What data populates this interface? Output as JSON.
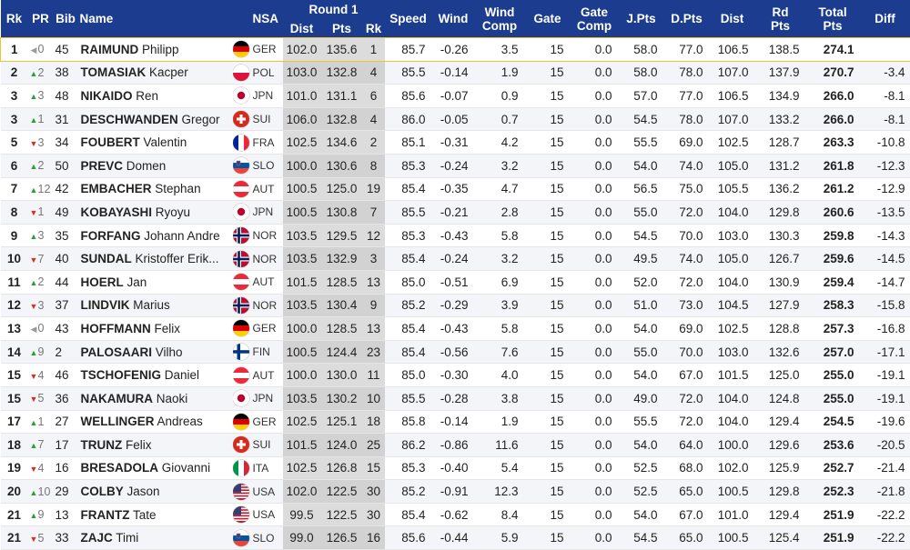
{
  "headers": {
    "rk": "Rk",
    "pr": "PR",
    "bib": "Bib",
    "name": "Name",
    "nsa": "NSA",
    "round1": "Round 1",
    "dist": "Dist",
    "pts": "Pts",
    "r1rk": "Rk",
    "speed": "Speed",
    "wind": "Wind",
    "wind_comp_1": "Wind",
    "wind_comp_2": "Comp",
    "gate": "Gate",
    "gate_comp_1": "Gate",
    "gate_comp_2": "Comp",
    "jpts": "J.Pts",
    "dpts": "D.Pts",
    "dist2": "Dist",
    "rdpts_1": "Rd",
    "rdpts_2": "Pts",
    "total_1": "Total",
    "total_2": "Pts",
    "diff": "Diff"
  },
  "rows": [
    {
      "rk": "1",
      "pr_dir": "same",
      "pr": "0",
      "bib": "45",
      "last": "RAIMUND",
      "first": "Philipp",
      "nsa": "GER",
      "flag": "ger-flag",
      "dist": "102.0",
      "pts": "135.6",
      "r1rk": "1",
      "speed": "85.7",
      "wind": "-0.26",
      "windcomp": "3.5",
      "gate": "15",
      "gatecomp": "0.0",
      "jpts": "58.0",
      "dpts": "77.0",
      "dist2": "106.5",
      "rdpts": "138.5",
      "total": "274.1",
      "diff": ""
    },
    {
      "rk": "2",
      "pr_dir": "up",
      "pr": "2",
      "bib": "38",
      "last": "TOMASIAK",
      "first": "Kacper",
      "nsa": "POL",
      "flag": "pol-flag",
      "dist": "103.0",
      "pts": "132.8",
      "r1rk": "4",
      "speed": "85.5",
      "wind": "-0.14",
      "windcomp": "1.9",
      "gate": "15",
      "gatecomp": "0.0",
      "jpts": "58.0",
      "dpts": "78.0",
      "dist2": "107.0",
      "rdpts": "137.9",
      "total": "270.7",
      "diff": "-3.4"
    },
    {
      "rk": "3",
      "pr_dir": "up",
      "pr": "3",
      "bib": "48",
      "last": "NIKAIDO",
      "first": "Ren",
      "nsa": "JPN",
      "flag": "jpn-flag",
      "dist": "101.0",
      "pts": "131.1",
      "r1rk": "6",
      "speed": "85.6",
      "wind": "-0.07",
      "windcomp": "0.9",
      "gate": "15",
      "gatecomp": "0.0",
      "jpts": "57.0",
      "dpts": "77.0",
      "dist2": "106.5",
      "rdpts": "134.9",
      "total": "266.0",
      "diff": "-8.1"
    },
    {
      "rk": "3",
      "pr_dir": "up",
      "pr": "1",
      "bib": "31",
      "last": "DESCHWANDEN",
      "first": "Gregor",
      "nsa": "SUI",
      "flag": "sui-flag",
      "dist": "106.0",
      "pts": "132.8",
      "r1rk": "4",
      "speed": "86.0",
      "wind": "-0.05",
      "windcomp": "0.7",
      "gate": "15",
      "gatecomp": "0.0",
      "jpts": "54.5",
      "dpts": "78.0",
      "dist2": "107.0",
      "rdpts": "133.2",
      "total": "266.0",
      "diff": "-8.1"
    },
    {
      "rk": "5",
      "pr_dir": "down",
      "pr": "3",
      "bib": "34",
      "last": "FOUBERT",
      "first": "Valentin",
      "nsa": "FRA",
      "flag": "fra-flag",
      "dist": "102.5",
      "pts": "134.6",
      "r1rk": "2",
      "speed": "85.1",
      "wind": "-0.31",
      "windcomp": "4.2",
      "gate": "15",
      "gatecomp": "0.0",
      "jpts": "55.5",
      "dpts": "69.0",
      "dist2": "102.5",
      "rdpts": "128.7",
      "total": "263.3",
      "diff": "-10.8"
    },
    {
      "rk": "6",
      "pr_dir": "up",
      "pr": "2",
      "bib": "50",
      "last": "PREVC",
      "first": "Domen",
      "nsa": "SLO",
      "flag": "slo-flag",
      "dist": "100.0",
      "pts": "130.6",
      "r1rk": "8",
      "speed": "85.3",
      "wind": "-0.24",
      "windcomp": "3.2",
      "gate": "15",
      "gatecomp": "0.0",
      "jpts": "54.0",
      "dpts": "74.0",
      "dist2": "105.0",
      "rdpts": "131.2",
      "total": "261.8",
      "diff": "-12.3"
    },
    {
      "rk": "7",
      "pr_dir": "up",
      "pr": "12",
      "bib": "42",
      "last": "EMBACHER",
      "first": "Stephan",
      "nsa": "AUT",
      "flag": "aut-flag",
      "dist": "100.5",
      "pts": "125.0",
      "r1rk": "19",
      "speed": "85.4",
      "wind": "-0.35",
      "windcomp": "4.7",
      "gate": "15",
      "gatecomp": "0.0",
      "jpts": "56.5",
      "dpts": "75.0",
      "dist2": "105.5",
      "rdpts": "136.2",
      "total": "261.2",
      "diff": "-12.9"
    },
    {
      "rk": "8",
      "pr_dir": "down",
      "pr": "1",
      "bib": "49",
      "last": "KOBAYASHI",
      "first": "Ryoyu",
      "nsa": "JPN",
      "flag": "jpn-flag",
      "dist": "100.5",
      "pts": "130.8",
      "r1rk": "7",
      "speed": "85.5",
      "wind": "-0.21",
      "windcomp": "2.8",
      "gate": "15",
      "gatecomp": "0.0",
      "jpts": "55.0",
      "dpts": "72.0",
      "dist2": "104.0",
      "rdpts": "129.8",
      "total": "260.6",
      "diff": "-13.5"
    },
    {
      "rk": "9",
      "pr_dir": "up",
      "pr": "3",
      "bib": "35",
      "last": "FORFANG",
      "first": "Johann Andre",
      "nsa": "NOR",
      "flag": "nor-flag",
      "dist": "103.5",
      "pts": "129.5",
      "r1rk": "12",
      "speed": "85.3",
      "wind": "-0.43",
      "windcomp": "5.8",
      "gate": "15",
      "gatecomp": "0.0",
      "jpts": "54.5",
      "dpts": "70.0",
      "dist2": "103.0",
      "rdpts": "130.3",
      "total": "259.8",
      "diff": "-14.3"
    },
    {
      "rk": "10",
      "pr_dir": "down",
      "pr": "7",
      "bib": "40",
      "last": "SUNDAL",
      "first": "Kristoffer Erik...",
      "nsa": "NOR",
      "flag": "nor-flag",
      "dist": "103.5",
      "pts": "132.9",
      "r1rk": "3",
      "speed": "85.4",
      "wind": "-0.24",
      "windcomp": "3.2",
      "gate": "15",
      "gatecomp": "0.0",
      "jpts": "49.5",
      "dpts": "74.0",
      "dist2": "105.0",
      "rdpts": "126.7",
      "total": "259.6",
      "diff": "-14.5"
    },
    {
      "rk": "11",
      "pr_dir": "up",
      "pr": "2",
      "bib": "44",
      "last": "HOERL",
      "first": "Jan",
      "nsa": "AUT",
      "flag": "aut-flag",
      "dist": "101.5",
      "pts": "128.5",
      "r1rk": "13",
      "speed": "85.0",
      "wind": "-0.51",
      "windcomp": "6.9",
      "gate": "15",
      "gatecomp": "0.0",
      "jpts": "52.0",
      "dpts": "72.0",
      "dist2": "104.0",
      "rdpts": "130.9",
      "total": "259.4",
      "diff": "-14.7"
    },
    {
      "rk": "12",
      "pr_dir": "down",
      "pr": "3",
      "bib": "37",
      "last": "LINDVIK",
      "first": "Marius",
      "nsa": "NOR",
      "flag": "nor-flag",
      "dist": "103.5",
      "pts": "130.4",
      "r1rk": "9",
      "speed": "85.2",
      "wind": "-0.29",
      "windcomp": "3.9",
      "gate": "15",
      "gatecomp": "0.0",
      "jpts": "51.0",
      "dpts": "73.0",
      "dist2": "104.5",
      "rdpts": "127.9",
      "total": "258.3",
      "diff": "-15.8"
    },
    {
      "rk": "13",
      "pr_dir": "same",
      "pr": "0",
      "bib": "43",
      "last": "HOFFMANN",
      "first": "Felix",
      "nsa": "GER",
      "flag": "ger-flag",
      "dist": "100.0",
      "pts": "128.5",
      "r1rk": "13",
      "speed": "85.4",
      "wind": "-0.43",
      "windcomp": "5.8",
      "gate": "15",
      "gatecomp": "0.0",
      "jpts": "54.0",
      "dpts": "69.0",
      "dist2": "102.5",
      "rdpts": "128.8",
      "total": "257.3",
      "diff": "-16.8"
    },
    {
      "rk": "14",
      "pr_dir": "up",
      "pr": "9",
      "bib": "2",
      "last": "PALOSAARI",
      "first": "Vilho",
      "nsa": "FIN",
      "flag": "fin-flag",
      "dist": "100.5",
      "pts": "124.4",
      "r1rk": "23",
      "speed": "85.4",
      "wind": "-0.56",
      "windcomp": "7.6",
      "gate": "15",
      "gatecomp": "0.0",
      "jpts": "55.0",
      "dpts": "70.0",
      "dist2": "103.0",
      "rdpts": "132.6",
      "total": "257.0",
      "diff": "-17.1"
    },
    {
      "rk": "15",
      "pr_dir": "down",
      "pr": "4",
      "bib": "46",
      "last": "TSCHOFENIG",
      "first": "Daniel",
      "nsa": "AUT",
      "flag": "aut-flag",
      "dist": "100.0",
      "pts": "130.0",
      "r1rk": "11",
      "speed": "85.0",
      "wind": "-0.30",
      "windcomp": "4.0",
      "gate": "15",
      "gatecomp": "0.0",
      "jpts": "54.0",
      "dpts": "67.0",
      "dist2": "101.5",
      "rdpts": "125.0",
      "total": "255.0",
      "diff": "-19.1"
    },
    {
      "rk": "15",
      "pr_dir": "down",
      "pr": "5",
      "bib": "36",
      "last": "NAKAMURA",
      "first": "Naoki",
      "nsa": "JPN",
      "flag": "jpn-flag",
      "dist": "103.5",
      "pts": "130.2",
      "r1rk": "10",
      "speed": "85.5",
      "wind": "-0.28",
      "windcomp": "3.8",
      "gate": "15",
      "gatecomp": "0.0",
      "jpts": "49.0",
      "dpts": "72.0",
      "dist2": "104.0",
      "rdpts": "124.8",
      "total": "255.0",
      "diff": "-19.1"
    },
    {
      "rk": "17",
      "pr_dir": "up",
      "pr": "1",
      "bib": "27",
      "last": "WELLINGER",
      "first": "Andreas",
      "nsa": "GER",
      "flag": "ger-flag",
      "dist": "102.5",
      "pts": "125.1",
      "r1rk": "18",
      "speed": "85.8",
      "wind": "-0.14",
      "windcomp": "1.9",
      "gate": "15",
      "gatecomp": "0.0",
      "jpts": "55.5",
      "dpts": "72.0",
      "dist2": "104.0",
      "rdpts": "129.4",
      "total": "254.5",
      "diff": "-19.6"
    },
    {
      "rk": "18",
      "pr_dir": "up",
      "pr": "7",
      "bib": "17",
      "last": "TRUNZ",
      "first": "Felix",
      "nsa": "SUI",
      "flag": "sui-flag",
      "dist": "101.5",
      "pts": "124.0",
      "r1rk": "25",
      "speed": "86.2",
      "wind": "-0.86",
      "windcomp": "11.6",
      "gate": "15",
      "gatecomp": "0.0",
      "jpts": "54.0",
      "dpts": "64.0",
      "dist2": "100.0",
      "rdpts": "129.6",
      "total": "253.6",
      "diff": "-20.5"
    },
    {
      "rk": "19",
      "pr_dir": "down",
      "pr": "4",
      "bib": "16",
      "last": "BRESADOLA",
      "first": "Giovanni",
      "nsa": "ITA",
      "flag": "ita-flag",
      "dist": "102.5",
      "pts": "126.8",
      "r1rk": "15",
      "speed": "85.3",
      "wind": "-0.40",
      "windcomp": "5.4",
      "gate": "15",
      "gatecomp": "0.0",
      "jpts": "52.5",
      "dpts": "68.0",
      "dist2": "102.0",
      "rdpts": "125.9",
      "total": "252.7",
      "diff": "-21.4"
    },
    {
      "rk": "20",
      "pr_dir": "up",
      "pr": "10",
      "bib": "29",
      "last": "COLBY",
      "first": "Jason",
      "nsa": "USA",
      "flag": "usa-flag",
      "dist": "102.0",
      "pts": "122.5",
      "r1rk": "30",
      "speed": "85.2",
      "wind": "-0.91",
      "windcomp": "12.3",
      "gate": "15",
      "gatecomp": "0.0",
      "jpts": "52.5",
      "dpts": "65.0",
      "dist2": "100.5",
      "rdpts": "129.8",
      "total": "252.3",
      "diff": "-21.8"
    },
    {
      "rk": "21",
      "pr_dir": "up",
      "pr": "9",
      "bib": "13",
      "last": "FRANTZ",
      "first": "Tate",
      "nsa": "USA",
      "flag": "usa-flag",
      "dist": "99.5",
      "pts": "122.5",
      "r1rk": "30",
      "speed": "85.4",
      "wind": "-0.62",
      "windcomp": "8.4",
      "gate": "15",
      "gatecomp": "0.0",
      "jpts": "54.0",
      "dpts": "67.0",
      "dist2": "101.0",
      "rdpts": "129.4",
      "total": "251.9",
      "diff": "-22.2"
    },
    {
      "rk": "21",
      "pr_dir": "down",
      "pr": "5",
      "bib": "33",
      "last": "ZAJC",
      "first": "Timi",
      "nsa": "SLO",
      "flag": "slo-flag",
      "dist": "99.0",
      "pts": "126.5",
      "r1rk": "16",
      "speed": "85.6",
      "wind": "-0.44",
      "windcomp": "5.9",
      "gate": "15",
      "gatecomp": "0.0",
      "jpts": "54.5",
      "dpts": "65.0",
      "dist2": "100.5",
      "rdpts": "125.4",
      "total": "251.9",
      "diff": "-22.2"
    }
  ],
  "colors": {
    "header_bg": "#1b3c8f",
    "highlight_border": "#f1c232",
    "up": "#2e9d3a",
    "down": "#d1312a",
    "round1_bg": "#dcdcdc"
  }
}
